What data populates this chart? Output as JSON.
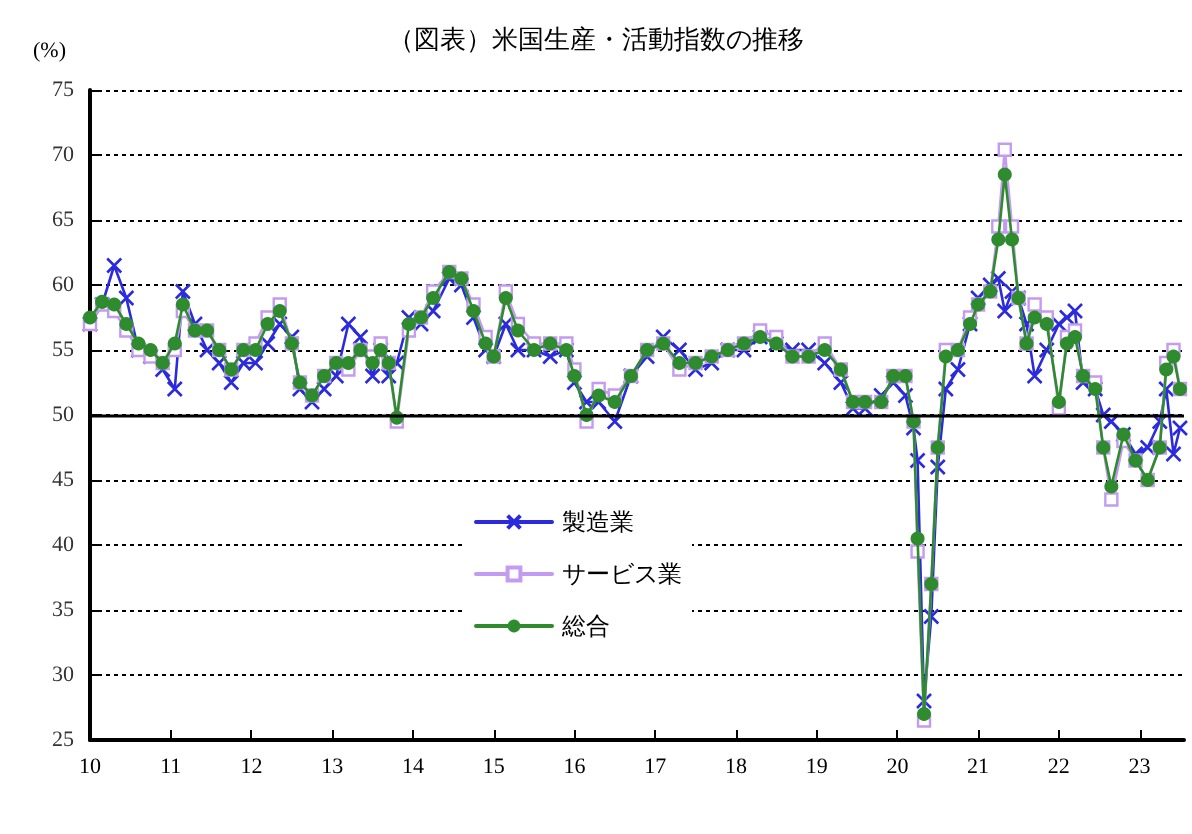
{
  "chart_data": {
    "type": "line",
    "title": "（図表）米国生産・活動指数の推移",
    "ylabel": "(%)",
    "x": [
      10.0,
      10.15,
      10.3,
      10.45,
      10.6,
      10.75,
      10.9,
      11.05,
      11.15,
      11.3,
      11.45,
      11.6,
      11.75,
      11.9,
      12.05,
      12.2,
      12.35,
      12.5,
      12.6,
      12.75,
      12.9,
      13.05,
      13.2,
      13.35,
      13.5,
      13.6,
      13.7,
      13.8,
      13.95,
      14.1,
      14.25,
      14.45,
      14.6,
      14.75,
      14.9,
      15.0,
      15.15,
      15.3,
      15.5,
      15.7,
      15.9,
      16.0,
      16.15,
      16.3,
      16.5,
      16.7,
      16.9,
      17.1,
      17.3,
      17.5,
      17.7,
      17.9,
      18.1,
      18.3,
      18.5,
      18.7,
      18.9,
      19.1,
      19.3,
      19.45,
      19.6,
      19.8,
      19.95,
      20.1,
      20.2,
      20.25,
      20.33,
      20.42,
      20.5,
      20.6,
      20.75,
      20.9,
      21.0,
      21.15,
      21.25,
      21.33,
      21.42,
      21.5,
      21.6,
      21.7,
      21.85,
      22.0,
      22.1,
      22.2,
      22.3,
      22.45,
      22.55,
      22.65,
      22.8,
      22.95,
      23.1,
      23.25,
      23.33,
      23.42,
      23.5
    ],
    "series": [
      {
        "name": "製造業",
        "color": "#2b2bdd",
        "marker": "cross",
        "values": [
          57,
          58.5,
          61.5,
          59,
          55,
          54.5,
          53.5,
          52,
          59.5,
          57,
          55,
          54,
          52.5,
          54,
          54,
          55.5,
          57,
          56,
          52,
          51,
          52,
          53,
          57,
          56,
          53,
          55,
          53,
          54,
          57.5,
          57,
          58,
          60.5,
          60,
          57.5,
          55,
          54.5,
          57,
          55,
          55,
          54.5,
          55,
          52.5,
          51,
          51,
          49.5,
          53,
          54.5,
          56,
          55,
          53.5,
          54,
          55,
          55,
          56,
          55.5,
          55,
          55,
          54,
          52.5,
          50.5,
          50.5,
          51.5,
          52.5,
          51.5,
          49,
          46.5,
          28,
          34.5,
          46,
          52,
          53.5,
          57,
          59,
          60,
          60.5,
          58,
          59.5,
          59,
          57,
          53,
          55,
          57,
          57.5,
          58,
          52.5,
          52,
          50,
          49.5,
          48.5,
          47,
          47.5,
          49.5,
          52,
          47,
          49
        ]
      },
      {
        "name": "サービス業",
        "color": "#c39bf0",
        "marker": "square",
        "values": [
          57,
          58.5,
          58,
          56.5,
          55,
          54.5,
          54,
          55,
          58,
          56.5,
          56.5,
          55,
          53.5,
          55,
          55.5,
          57.5,
          58.5,
          55.5,
          52.5,
          51.5,
          53,
          54,
          53.5,
          55,
          54.5,
          55.5,
          54,
          49.5,
          56.5,
          57.5,
          59.5,
          61,
          60.5,
          58.5,
          56,
          54.5,
          59.5,
          57,
          55.5,
          55.5,
          55.5,
          53.5,
          49.5,
          52,
          51.5,
          53,
          55,
          55.5,
          53.5,
          54,
          54.5,
          55,
          55.5,
          56.5,
          56,
          54.5,
          54.5,
          55.5,
          53.5,
          51,
          51,
          51,
          53,
          53,
          49.5,
          39.5,
          26.5,
          37,
          47.5,
          55,
          55,
          57.5,
          58.5,
          59.5,
          64.5,
          70.4,
          64.5,
          59,
          55.5,
          58.5,
          57.5,
          50.5,
          56,
          56.5,
          53,
          52.5,
          47.5,
          43.5,
          48,
          46.5,
          45,
          47.5,
          54,
          55,
          52
        ]
      },
      {
        "name": "総合",
        "color": "#2e8b2e",
        "marker": "circle",
        "values": [
          57.5,
          58.7,
          58.5,
          57,
          55.5,
          55,
          54,
          55.5,
          58.5,
          56.5,
          56.5,
          55,
          53.5,
          55,
          55,
          57,
          58,
          55.5,
          52.5,
          51.5,
          53,
          54,
          54,
          55,
          54,
          55,
          54,
          49.8,
          57,
          57.5,
          59,
          61,
          60.5,
          58,
          55.5,
          54.5,
          59,
          56.5,
          55,
          55.5,
          55,
          53,
          50,
          51.5,
          51,
          53,
          55,
          55.5,
          54,
          54,
          54.5,
          55,
          55.5,
          56,
          55.5,
          54.5,
          54.5,
          55,
          53.5,
          51,
          51,
          51,
          53,
          53,
          49.5,
          40.5,
          27,
          37,
          47.5,
          54.5,
          55,
          57,
          58.5,
          59.5,
          63.5,
          68.5,
          63.5,
          59,
          55.5,
          57.5,
          57,
          51,
          55.5,
          56,
          53,
          52,
          47.5,
          44.5,
          48.5,
          46.5,
          45,
          47.5,
          53.5,
          54.5,
          52
        ]
      }
    ],
    "xlim": [
      10,
      23.55
    ],
    "xticks": [
      10,
      11,
      12,
      13,
      14,
      15,
      16,
      17,
      18,
      19,
      20,
      21,
      22,
      23
    ],
    "ylim": [
      25,
      75
    ],
    "yticks": [
      25,
      30,
      35,
      40,
      45,
      50,
      55,
      60,
      65,
      70,
      75
    ],
    "ref_lines": [
      {
        "axis": "y",
        "value": 50,
        "color": "#000000",
        "line_style": "solid"
      }
    ],
    "grid": "y",
    "legend": "bottom left",
    "line_style": "solid"
  }
}
